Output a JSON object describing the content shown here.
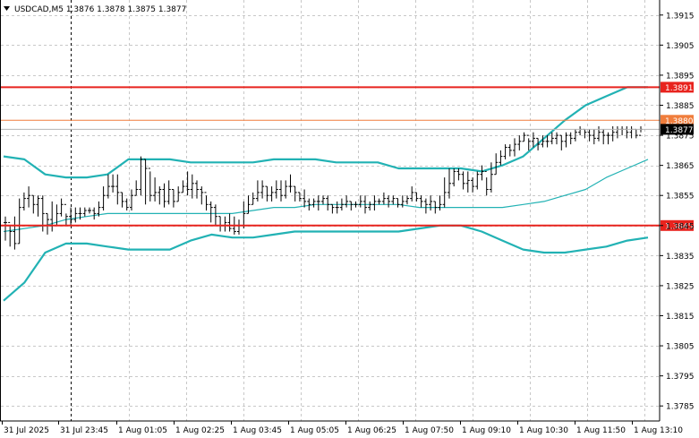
{
  "chart_data": {
    "type": "line",
    "title": "USDCAD,M5  1.3876 1.3878 1.3875 1.3877",
    "symbol": "USDCAD",
    "timeframe": "M5",
    "ohlc_header": {
      "open": 1.3876,
      "high": 1.3878,
      "low": 1.3875,
      "close": 1.3877
    },
    "ylim": [
      1.378,
      1.392
    ],
    "y_ticks": [
      1.3915,
      1.3905,
      1.3895,
      1.3885,
      1.3875,
      1.3865,
      1.3855,
      1.3845,
      1.3835,
      1.3825,
      1.3815,
      1.3805,
      1.3795,
      1.3785
    ],
    "x_tick_labels": [
      "31 Jul 2025",
      "31 Jul 23:45",
      "1 Aug 01:05",
      "1 Aug 02:25",
      "1 Aug 03:45",
      "1 Aug 05:05",
      "1 Aug 06:25",
      "1 Aug 07:50",
      "1 Aug 09:10",
      "1 Aug 10:30",
      "1 Aug 11:50",
      "1 Aug 13:10"
    ],
    "grid": true,
    "price_levels": [
      {
        "label": "1.3891",
        "value": 1.3891,
        "color": "#e8231e"
      },
      {
        "label": "1.3880",
        "value": 1.388,
        "color": "#f07d3c"
      },
      {
        "label": "1.3845",
        "value": 1.3845,
        "color": "#e8231e"
      }
    ],
    "current_price": {
      "label": "1.3877",
      "value": 1.3877
    },
    "series": [
      {
        "values": [
          1.3843,
          1.3844,
          1.3845,
          1.3847,
          1.3848,
          1.3849,
          1.3849,
          1.3849,
          1.3849,
          1.3849,
          1.3849,
          1.3849,
          1.385,
          1.3851,
          1.3851,
          1.3852,
          1.3852,
          1.3852,
          1.3852,
          1.3852,
          1.3851,
          1.3851,
          1.3851,
          1.3851,
          1.3851,
          1.3852,
          1.3853,
          1.3855,
          1.3857,
          1.3861,
          1.3864,
          1.3867
        ]
      },
      {
        "values": [
          1.3868,
          1.3867,
          1.3862,
          1.3861,
          1.3861,
          1.3862,
          1.3867,
          1.3867,
          1.3867,
          1.3866,
          1.3866,
          1.3866,
          1.3866,
          1.3867,
          1.3867,
          1.3867,
          1.3866,
          1.3866,
          1.3866,
          1.3864,
          1.3864,
          1.3864,
          1.3864,
          1.3863,
          1.3865,
          1.3868,
          1.3874,
          1.388,
          1.3885,
          1.3888,
          1.3891,
          1.3891
        ]
      },
      {
        "values": [
          1.382,
          1.3826,
          1.3836,
          1.3839,
          1.3839,
          1.3838,
          1.3837,
          1.3837,
          1.3837,
          1.384,
          1.3842,
          1.3841,
          1.3841,
          1.3842,
          1.3843,
          1.3843,
          1.3843,
          1.3843,
          1.3843,
          1.3843,
          1.3844,
          1.3845,
          1.3845,
          1.3843,
          1.384,
          1.3837,
          1.3836,
          1.3836,
          1.3837,
          1.3838,
          1.384,
          1.3841
        ]
      }
    ],
    "candles": {
      "close": [
        1.3846,
        1.3843,
        1.3839,
        1.3851,
        1.3854,
        1.3855,
        1.3852,
        1.3854,
        1.3849,
        1.3847,
        1.3845,
        1.3849,
        1.3852,
        1.3848,
        1.3847,
        1.3849,
        1.3849,
        1.385,
        1.385,
        1.3849,
        1.3851,
        1.3855,
        1.3858,
        1.3858,
        1.3856,
        1.3853,
        1.3851,
        1.3855,
        1.3857,
        1.3867,
        1.3864,
        1.3855,
        1.3856,
        1.3857,
        1.3853,
        1.3857,
        1.3853,
        1.3856,
        1.3858,
        1.3857,
        1.3859,
        1.3857,
        1.3856,
        1.3852,
        1.3851,
        1.3848,
        1.3845,
        1.3846,
        1.3844,
        1.3843,
        1.3845,
        1.3849,
        1.3852,
        1.3854,
        1.3856,
        1.3858,
        1.3855,
        1.3856,
        1.3857,
        1.3855,
        1.3858,
        1.3858,
        1.3856,
        1.3854,
        1.3853,
        1.3852,
        1.3853,
        1.3853,
        1.3854,
        1.3852,
        1.3851,
        1.3851,
        1.3852,
        1.3853,
        1.3852,
        1.3852,
        1.3853,
        1.3851,
        1.3852,
        1.3853,
        1.3853,
        1.3854,
        1.3853,
        1.3854,
        1.3852,
        1.3853,
        1.3854,
        1.3856,
        1.3854,
        1.3853,
        1.3852,
        1.3853,
        1.3851,
        1.3852,
        1.3856,
        1.3859,
        1.3863,
        1.3862,
        1.3859,
        1.386,
        1.3858,
        1.3862,
        1.3863,
        1.3857,
        1.3862,
        1.3866,
        1.3868,
        1.3871,
        1.387,
        1.3872,
        1.3873,
        1.3875,
        1.3873,
        1.3874,
        1.3872,
        1.3873,
        1.3873,
        1.3874,
        1.3875,
        1.3873,
        1.3875,
        1.3874,
        1.3876,
        1.3877,
        1.3876,
        1.3875,
        1.3874,
        1.3876,
        1.3875,
        1.3875,
        1.3876,
        1.3877,
        1.3877,
        1.3876,
        1.3877,
        1.3875,
        1.3877
      ],
      "high": [
        1.3848,
        1.3845,
        1.3848,
        1.3854,
        1.3856,
        1.3858,
        1.3855,
        1.3855,
        1.3855,
        1.3849,
        1.3853,
        1.3852,
        1.3854,
        1.3849,
        1.3851,
        1.3851,
        1.3851,
        1.3851,
        1.3851,
        1.3851,
        1.3853,
        1.3858,
        1.3862,
        1.3862,
        1.3862,
        1.3856,
        1.3854,
        1.3857,
        1.386,
        1.3868,
        1.3867,
        1.3863,
        1.3861,
        1.3858,
        1.3859,
        1.386,
        1.3857,
        1.3858,
        1.386,
        1.3863,
        1.3862,
        1.386,
        1.3858,
        1.3855,
        1.3853,
        1.3852,
        1.3848,
        1.3848,
        1.3849,
        1.3848,
        1.3847,
        1.3853,
        1.3855,
        1.3856,
        1.386,
        1.386,
        1.3858,
        1.3858,
        1.386,
        1.386,
        1.386,
        1.3862,
        1.3858,
        1.3856,
        1.3857,
        1.3854,
        1.3854,
        1.3855,
        1.3855,
        1.3855,
        1.3852,
        1.3853,
        1.3854,
        1.3855,
        1.3853,
        1.3853,
        1.3855,
        1.3855,
        1.3853,
        1.3855,
        1.3854,
        1.3856,
        1.3855,
        1.3855,
        1.3854,
        1.3855,
        1.3855,
        1.3858,
        1.3856,
        1.3855,
        1.3854,
        1.3855,
        1.3853,
        1.3855,
        1.3861,
        1.3864,
        1.3864,
        1.3864,
        1.3863,
        1.3863,
        1.3861,
        1.3863,
        1.3865,
        1.3861,
        1.3866,
        1.3869,
        1.387,
        1.3872,
        1.3872,
        1.3874,
        1.3875,
        1.3876,
        1.3874,
        1.3876,
        1.3874,
        1.3875,
        1.3875,
        1.3876,
        1.3876,
        1.3875,
        1.3876,
        1.3876,
        1.3877,
        1.3878,
        1.3877,
        1.3877,
        1.3877,
        1.3878,
        1.3877,
        1.3876,
        1.3878,
        1.3878,
        1.3878,
        1.3878,
        1.3878,
        1.3877,
        1.3878
      ],
      "low": [
        1.384,
        1.3838,
        1.3837,
        1.3839,
        1.385,
        1.3851,
        1.3849,
        1.3848,
        1.3843,
        1.3842,
        1.3843,
        1.3845,
        1.3848,
        1.3845,
        1.3845,
        1.3846,
        1.3847,
        1.3848,
        1.3849,
        1.3847,
        1.3848,
        1.385,
        1.3854,
        1.3856,
        1.3852,
        1.3851,
        1.385,
        1.385,
        1.3855,
        1.3855,
        1.3852,
        1.3853,
        1.3853,
        1.3852,
        1.3851,
        1.3852,
        1.3851,
        1.3853,
        1.3856,
        1.3855,
        1.3854,
        1.3854,
        1.3852,
        1.385,
        1.3846,
        1.3845,
        1.3843,
        1.3843,
        1.3843,
        1.3842,
        1.3842,
        1.3844,
        1.3849,
        1.3852,
        1.3853,
        1.3854,
        1.3853,
        1.3853,
        1.3854,
        1.3853,
        1.3854,
        1.3856,
        1.3853,
        1.3853,
        1.3851,
        1.385,
        1.3851,
        1.385,
        1.3852,
        1.385,
        1.3849,
        1.3849,
        1.385,
        1.3851,
        1.385,
        1.3851,
        1.3851,
        1.3849,
        1.385,
        1.385,
        1.3852,
        1.3852,
        1.3851,
        1.3852,
        1.3851,
        1.3851,
        1.3852,
        1.3853,
        1.3853,
        1.3851,
        1.3849,
        1.385,
        1.3849,
        1.385,
        1.3851,
        1.3854,
        1.3858,
        1.386,
        1.3857,
        1.3856,
        1.3856,
        1.3857,
        1.386,
        1.3855,
        1.3856,
        1.3862,
        1.3865,
        1.3867,
        1.3868,
        1.3868,
        1.387,
        1.3873,
        1.387,
        1.3871,
        1.387,
        1.3871,
        1.3871,
        1.3872,
        1.3872,
        1.387,
        1.3871,
        1.3872,
        1.3873,
        1.3875,
        1.3874,
        1.3873,
        1.3872,
        1.3873,
        1.3872,
        1.3872,
        1.3873,
        1.3874,
        1.3875,
        1.3874,
        1.3874,
        1.3874,
        1.3876
      ]
    }
  },
  "colors": {
    "background": "#ffffff",
    "grid": "#c8c8c8",
    "axis": "#000000",
    "bands": "#22b2b4",
    "candles": "#000000",
    "level_red": "#e8231e",
    "level_orange": "#f07d3c",
    "current_price_bg": "#000000",
    "period_separator": "#000000",
    "current_price_line": "#b4b4b4"
  }
}
